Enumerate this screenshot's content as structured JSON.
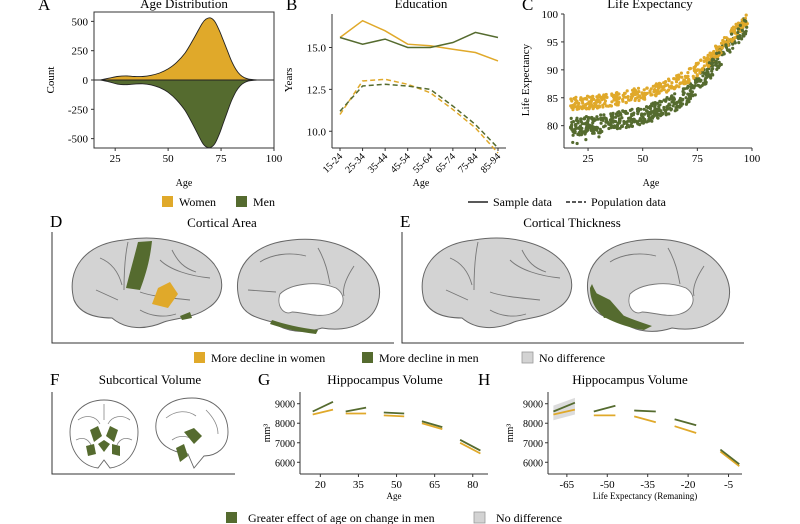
{
  "colors": {
    "women": "#E0A92A",
    "men": "#556B2F",
    "gray": "#D3D3D3",
    "nodiff": "#D3D3D3",
    "outline": "#555555"
  },
  "panels": {
    "A": {
      "letter": "A",
      "title": "Age Distribution",
      "ylabel": "Count",
      "xlabel": "Age"
    },
    "B": {
      "letter": "B",
      "title": "Education",
      "ylabel": "Years",
      "xlabel": "Age"
    },
    "C": {
      "letter": "C",
      "title": "Life Expectancy",
      "ylabel": "Life Expectancy",
      "xlabel": "Age"
    },
    "D": {
      "letter": "D",
      "title": "Cortical Area"
    },
    "E": {
      "letter": "E",
      "title": "Cortical Thickness"
    },
    "F": {
      "letter": "F",
      "title": "Subcortical Volume"
    },
    "G": {
      "letter": "G",
      "title": "Hippocampus Volume",
      "ylabel": "mm³",
      "xlabel": "Age"
    },
    "H": {
      "letter": "H",
      "title": "Hippocampus Volume",
      "ylabel": "mm³",
      "xlabel": "Life Expectancy (Remaning)"
    }
  },
  "legends": {
    "sex": {
      "women": "Women",
      "men": "Men"
    },
    "data": {
      "sample": "Sample data",
      "population": "Population data"
    },
    "decline": {
      "women": "More decline in women",
      "men": "More decline in men",
      "none": "No difference"
    },
    "effect": {
      "men": "Greater effect of age on change in men",
      "none": "No difference"
    }
  },
  "chart_data": [
    {
      "panel": "A",
      "type": "area",
      "title": "Age Distribution",
      "xlabel": "Age",
      "ylabel": "Count",
      "xlim": [
        15,
        100
      ],
      "ylim": [
        -580,
        580
      ],
      "xticks": [
        25,
        50,
        75,
        100
      ],
      "yticks": [
        500,
        250,
        0,
        -250,
        -500
      ],
      "series": [
        {
          "name": "Women",
          "x": [
            18,
            22,
            26,
            30,
            34,
            38,
            42,
            46,
            50,
            54,
            58,
            62,
            66,
            68,
            70,
            72,
            74,
            76,
            78,
            80,
            82,
            84,
            86,
            88,
            90,
            92,
            94
          ],
          "y": [
            0,
            15,
            30,
            35,
            30,
            30,
            40,
            60,
            95,
            150,
            230,
            350,
            480,
            520,
            530,
            500,
            430,
            340,
            250,
            160,
            90,
            45,
            20,
            8,
            3,
            1,
            0
          ]
        },
        {
          "name": "Men",
          "x": [
            18,
            22,
            26,
            30,
            34,
            38,
            42,
            46,
            50,
            54,
            58,
            62,
            66,
            68,
            70,
            72,
            74,
            76,
            78,
            80,
            82,
            84,
            86,
            88,
            90,
            92,
            94
          ],
          "y": [
            0,
            -15,
            -35,
            -40,
            -35,
            -32,
            -42,
            -65,
            -105,
            -170,
            -260,
            -390,
            -530,
            -570,
            -575,
            -545,
            -470,
            -370,
            -270,
            -175,
            -100,
            -50,
            -22,
            -8,
            -3,
            -1,
            0
          ]
        }
      ]
    },
    {
      "panel": "B",
      "type": "line",
      "title": "Education",
      "xlabel": "Age",
      "ylabel": "Years",
      "categories": [
        "15-24",
        "25-34",
        "35-44",
        "45-54",
        "55-64",
        "65-74",
        "75-84",
        "85-94"
      ],
      "ylim": [
        9.0,
        17.0
      ],
      "yticks": [
        10.0,
        12.5,
        15.0
      ],
      "series": [
        {
          "name": "Sample data",
          "sex": "Women",
          "values": [
            15.6,
            16.6,
            16.0,
            15.2,
            15.1,
            14.9,
            14.7,
            14.2
          ]
        },
        {
          "name": "Sample data",
          "sex": "Men",
          "values": [
            15.6,
            15.2,
            15.5,
            15.0,
            15.0,
            15.3,
            15.9,
            15.6
          ]
        },
        {
          "name": "Population data",
          "sex": "Women",
          "values": [
            11.0,
            13.0,
            13.1,
            12.8,
            12.3,
            11.3,
            10.2,
            8.7
          ]
        },
        {
          "name": "Population data",
          "sex": "Men",
          "values": [
            11.2,
            12.7,
            12.8,
            12.7,
            12.5,
            11.5,
            10.4,
            9.0
          ]
        }
      ]
    },
    {
      "panel": "C",
      "type": "scatter",
      "title": "Life Expectancy",
      "xlabel": "Age",
      "ylabel": "Life Expectancy",
      "xlim": [
        14,
        100
      ],
      "ylim": [
        76,
        100
      ],
      "xticks": [
        25,
        50,
        75,
        100
      ],
      "yticks": [
        80,
        85,
        90,
        95,
        100
      ],
      "series": [
        {
          "name": "Women",
          "curve": {
            "x": [
              18,
              30,
              40,
              50,
              60,
              70,
              80,
              90,
              98
            ],
            "y": [
              84,
              84.3,
              85,
              85.8,
              87,
              88.6,
              91.6,
              96,
              99
            ]
          }
        },
        {
          "name": "Men",
          "curve": {
            "x": [
              18,
              30,
              40,
              50,
              60,
              70,
              80,
              90,
              98
            ],
            "y": [
              79.8,
              80.3,
              81,
              81.8,
              83.2,
              85.4,
              89.5,
              94.5,
              98.5
            ]
          }
        }
      ]
    },
    {
      "panel": "G",
      "type": "line",
      "title": "Hippocampus Volume",
      "xlabel": "Age",
      "ylabel": "mm³",
      "xlim": [
        12,
        86
      ],
      "ylim": [
        5400,
        9600
      ],
      "xticks": [
        20,
        35,
        50,
        65,
        80
      ],
      "yticks": [
        6000,
        7000,
        8000,
        9000
      ],
      "series": [
        {
          "name": "Women",
          "segments": [
            [
              [
                17,
                8450
              ],
              [
                25,
                8700
              ]
            ],
            [
              [
                30,
                8500
              ],
              [
                38,
                8500
              ]
            ],
            [
              [
                45,
                8400
              ],
              [
                53,
                8350
              ]
            ],
            [
              [
                60,
                8000
              ],
              [
                68,
                7700
              ]
            ],
            [
              [
                75,
                7000
              ],
              [
                83,
                6450
              ]
            ]
          ]
        },
        {
          "name": "Men",
          "segments": [
            [
              [
                17,
                8600
              ],
              [
                25,
                9100
              ]
            ],
            [
              [
                30,
                8600
              ],
              [
                38,
                8800
              ]
            ],
            [
              [
                45,
                8550
              ],
              [
                53,
                8500
              ]
            ],
            [
              [
                60,
                8100
              ],
              [
                68,
                7800
              ]
            ],
            [
              [
                75,
                7150
              ],
              [
                83,
                6600
              ]
            ]
          ]
        }
      ]
    },
    {
      "panel": "H",
      "type": "line",
      "title": "Hippocampus Volume",
      "xlabel": "Life Expectancy (Remaning)",
      "ylabel": "mm³",
      "xlim": [
        -72,
        0
      ],
      "ylim": [
        5400,
        9600
      ],
      "xticks": [
        -65,
        -50,
        -35,
        -20,
        -5
      ],
      "yticks": [
        6000,
        7000,
        8000,
        9000
      ],
      "series": [
        {
          "name": "Women",
          "segments": [
            [
              [
                -70,
                8450
              ],
              [
                -62,
                8700
              ]
            ],
            [
              [
                -55,
                8400
              ],
              [
                -47,
                8400
              ]
            ],
            [
              [
                -40,
                8350
              ],
              [
                -32,
                8050
              ]
            ],
            [
              [
                -25,
                7850
              ],
              [
                -17,
                7500
              ]
            ],
            [
              [
                -8,
                6550
              ],
              [
                -1,
                5800
              ]
            ]
          ]
        },
        {
          "name": "Men",
          "segments": [
            [
              [
                -70,
                8600
              ],
              [
                -62,
                9050
              ]
            ],
            [
              [
                -55,
                8600
              ],
              [
                -47,
                8900
              ]
            ],
            [
              [
                -40,
                8650
              ],
              [
                -32,
                8600
              ]
            ],
            [
              [
                -25,
                8200
              ],
              [
                -17,
                7900
              ]
            ],
            [
              [
                -8,
                6650
              ],
              [
                -1,
                5900
              ]
            ]
          ]
        }
      ]
    }
  ]
}
